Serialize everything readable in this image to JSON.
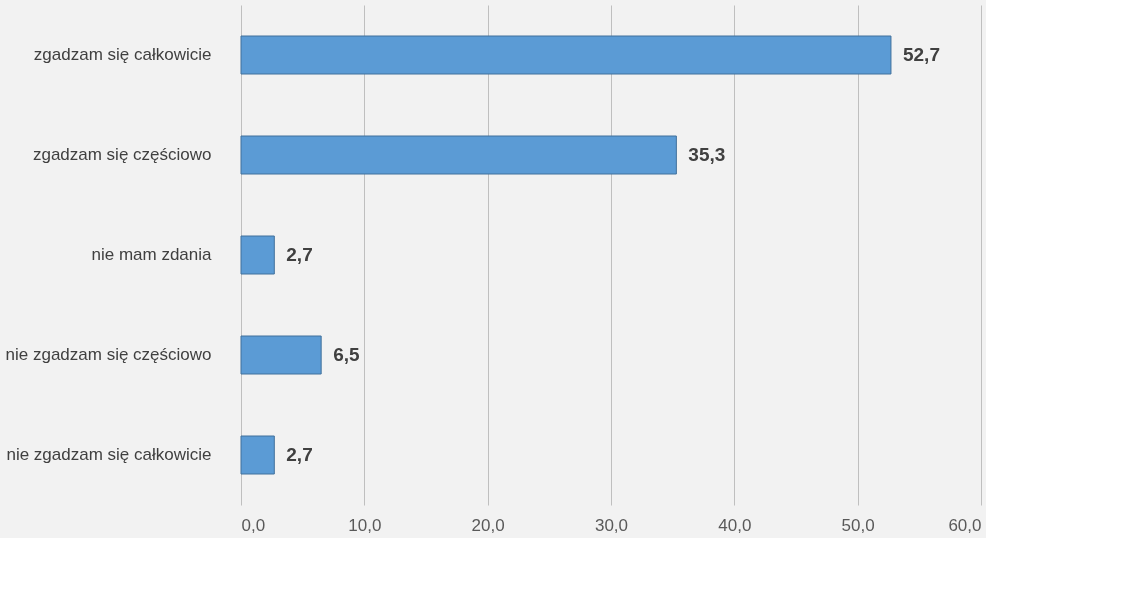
{
  "chart_data": {
    "type": "bar",
    "orientation": "horizontal",
    "categories": [
      "zgadzam się całkowicie",
      "zgadzam się częściowo",
      "nie mam zdania",
      "nie zgadzam się częściowo",
      "nie zgadzam się całkowicie"
    ],
    "values": [
      52.7,
      35.3,
      2.7,
      6.5,
      2.7
    ],
    "value_labels": [
      "52,7",
      "35,3",
      "2,7",
      "6,5",
      "2,7"
    ],
    "color": "#5b9bd5",
    "xlim": [
      0,
      60
    ],
    "xticks": [
      {
        "value": 0,
        "label": "0,0"
      },
      {
        "value": 10,
        "label": "10,0"
      },
      {
        "value": 20,
        "label": "20,0"
      },
      {
        "value": 30,
        "label": "30,0"
      },
      {
        "value": 40,
        "label": "40,0"
      },
      {
        "value": 50,
        "label": "50,0"
      },
      {
        "value": 60,
        "label": "60,0"
      }
    ],
    "grid": "x"
  }
}
